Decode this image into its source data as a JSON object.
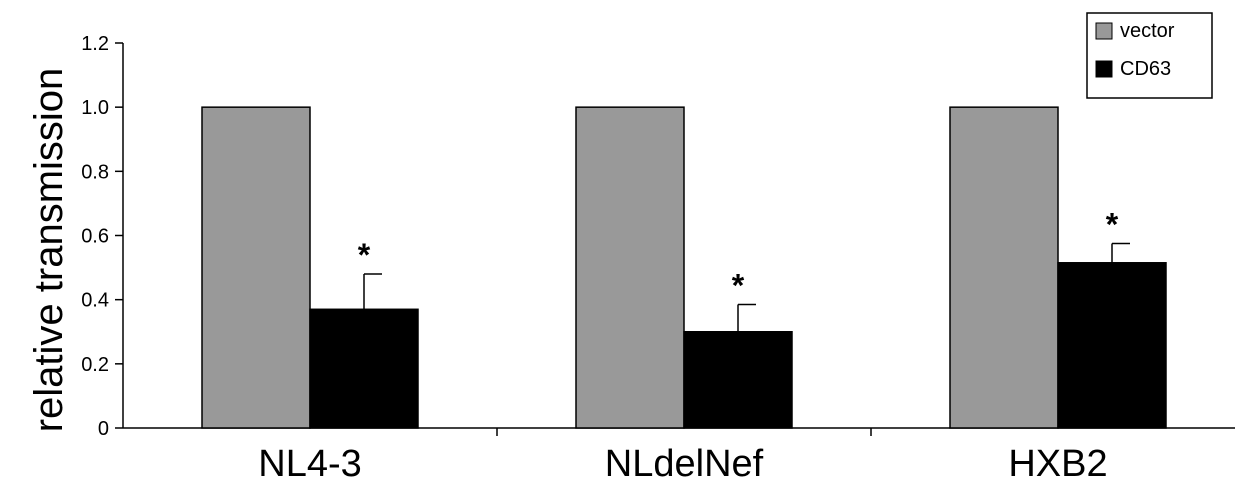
{
  "chart_data": {
    "type": "bar",
    "categories": [
      "NL4-3",
      "NLdelNef",
      "HXB2"
    ],
    "series": [
      {
        "name": "vector",
        "values": [
          1.0,
          1.0,
          1.0
        ],
        "errors": [
          0,
          0,
          0
        ],
        "color": "#999999"
      },
      {
        "name": "CD63",
        "values": [
          0.37,
          0.3,
          0.515
        ],
        "errors": [
          0.11,
          0.085,
          0.06
        ],
        "color": "#000000"
      }
    ],
    "annotations": [
      "*",
      "*",
      "*"
    ],
    "ylabel": "relative transmission",
    "ylim": [
      0,
      1.2
    ],
    "yticks": [
      "0",
      "0.2",
      "0.4",
      "0.6",
      "0.8",
      "1.0",
      "1.2"
    ],
    "legend": {
      "placement": "top-right"
    }
  }
}
